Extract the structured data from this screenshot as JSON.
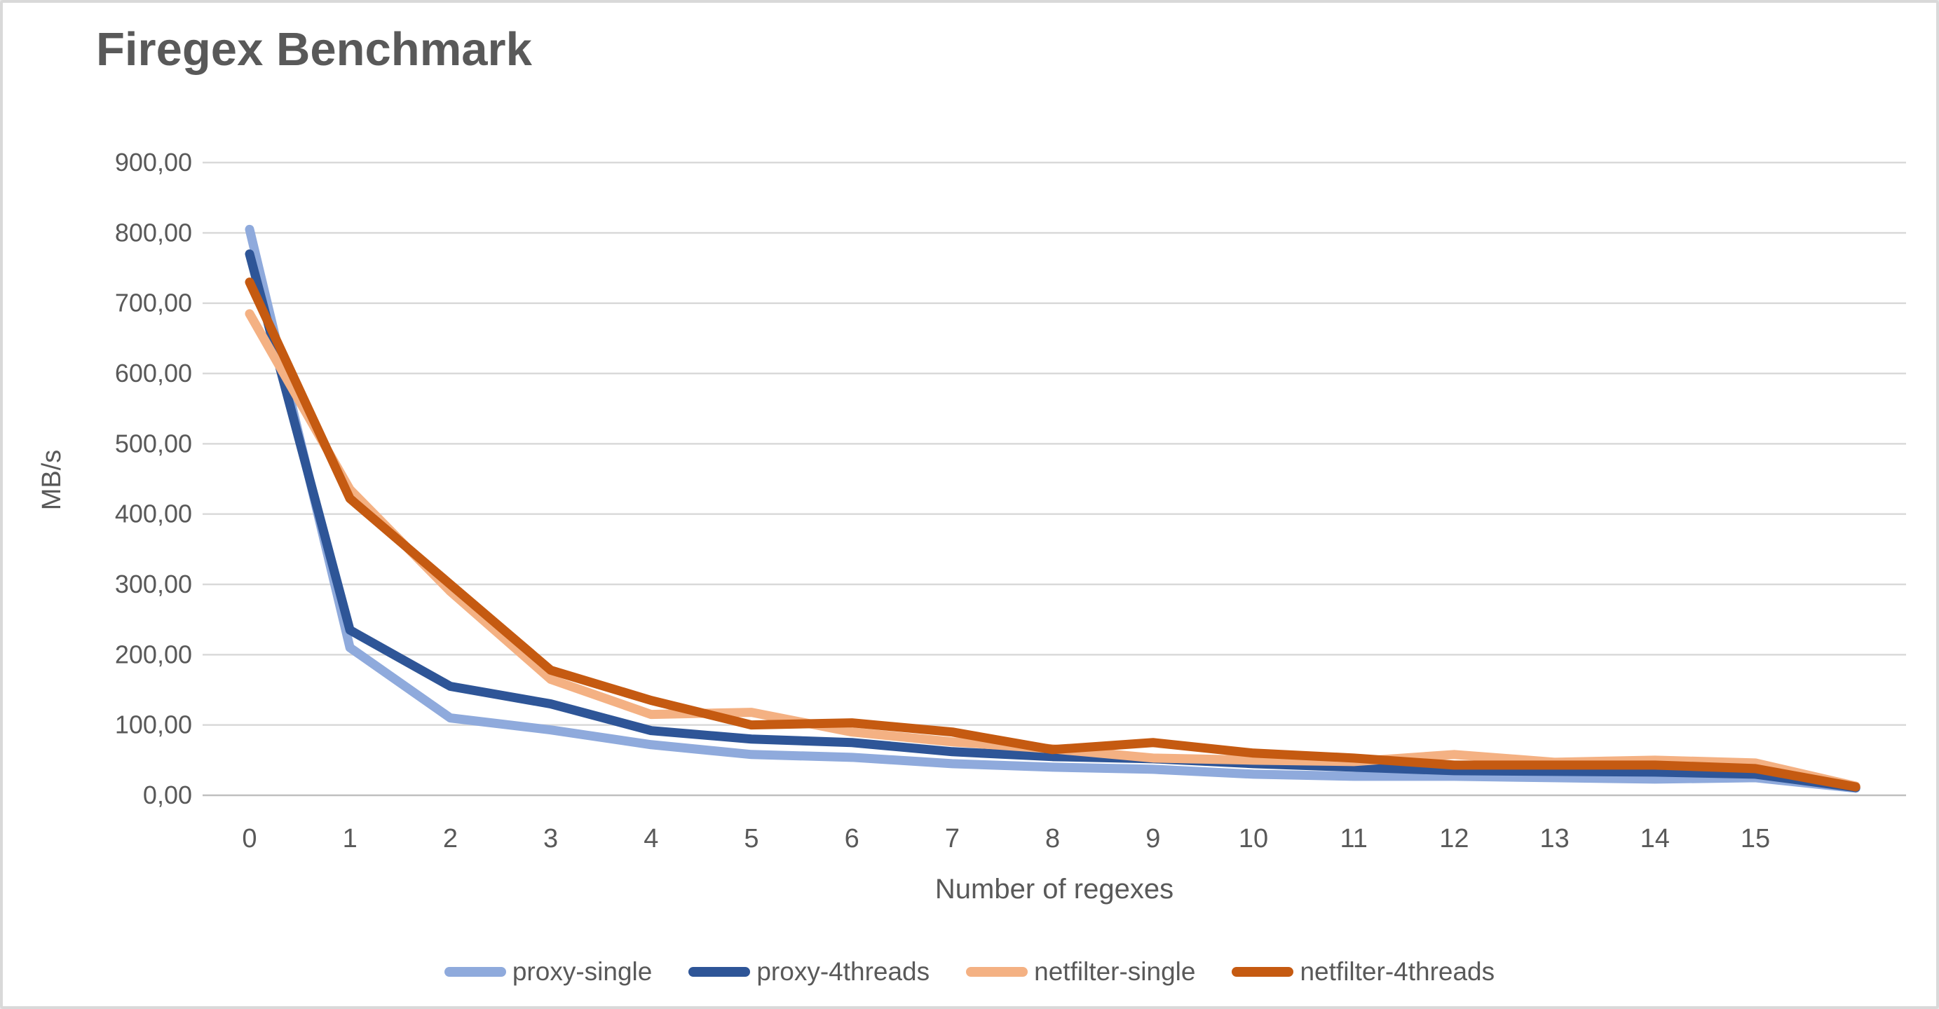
{
  "chart": {
    "title": "Firegex Benchmark",
    "y_axis": {
      "label": "MB/s",
      "tick_labels": [
        "0,00",
        "100,00",
        "200,00",
        "300,00",
        "400,00",
        "500,00",
        "600,00",
        "700,00",
        "800,00",
        "900,00"
      ]
    },
    "x_axis": {
      "label": "Number of regexes",
      "tick_labels": [
        "0",
        "1",
        "2",
        "3",
        "4",
        "5",
        "6",
        "7",
        "8",
        "9",
        "10",
        "11",
        "12",
        "13",
        "14",
        "15"
      ]
    },
    "grid_color": "#d9d9d9",
    "axis_line_color": "#bfbfbf",
    "text_color": "#595959"
  },
  "chart_data": {
    "type": "line",
    "title": "Firegex Benchmark",
    "xlabel": "Number of regexes",
    "ylabel": "MB/s",
    "x": [
      0,
      1,
      2,
      3,
      4,
      5,
      6,
      7,
      8,
      9,
      10,
      11,
      12,
      13,
      14,
      15,
      16
    ],
    "ylim": [
      0,
      900
    ],
    "ytick_step": 100,
    "grid": true,
    "legend_position": "bottom",
    "series": [
      {
        "name": "proxy-single",
        "color": "#8faadc",
        "values": [
          805,
          210,
          110,
          93,
          72,
          58,
          54,
          45,
          40,
          37,
          30,
          27,
          27,
          25,
          23,
          25,
          10
        ]
      },
      {
        "name": "proxy-4threads",
        "color": "#2e5597",
        "values": [
          770,
          235,
          155,
          130,
          92,
          80,
          75,
          62,
          55,
          52,
          45,
          40,
          35,
          34,
          33,
          30,
          11
        ]
      },
      {
        "name": "netfilter-single",
        "color": "#f4b183",
        "values": [
          685,
          435,
          290,
          165,
          115,
          118,
          90,
          76,
          66,
          53,
          50,
          48,
          58,
          47,
          50,
          46,
          13
        ]
      },
      {
        "name": "netfilter-4threads",
        "color": "#c55a11",
        "values": [
          730,
          422,
          300,
          178,
          135,
          100,
          103,
          90,
          65,
          75,
          60,
          53,
          43,
          43,
          43,
          38,
          12
        ]
      }
    ]
  },
  "legend": {
    "items": [
      {
        "label": "proxy-single",
        "color": "#8faadc"
      },
      {
        "label": "proxy-4threads",
        "color": "#2e5597"
      },
      {
        "label": "netfilter-single",
        "color": "#f4b183"
      },
      {
        "label": "netfilter-4threads",
        "color": "#c55a11"
      }
    ]
  }
}
